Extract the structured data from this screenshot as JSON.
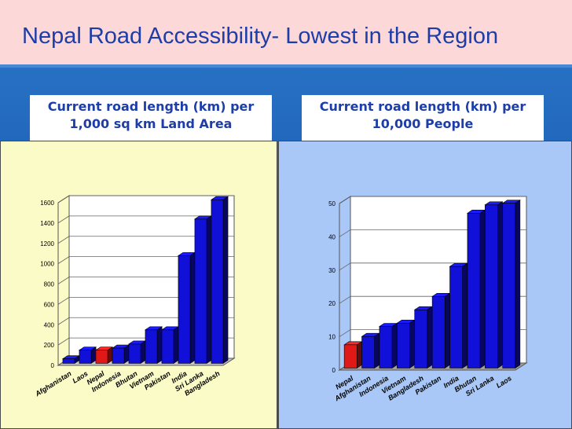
{
  "slide": {
    "title": "Nepal Road Accessibility- Lowest in the Region"
  },
  "colors": {
    "bar": "#1010d8",
    "bar_highlight": "#e01818",
    "left_panel_bg": "#fbfbc8",
    "right_panel_bg": "#a9c8f7",
    "title_color": "#1d3da8"
  },
  "chart_data": [
    {
      "type": "bar",
      "title": "Current road length (km) per 1,000 sq km Land Area",
      "title_lines": [
        "Current road length (km) per",
        "1,000 sq km Land Area"
      ],
      "categories": [
        "Afghanistan",
        "Laos",
        "Nepal",
        "Indonesia",
        "Bhutan",
        "Vietnam",
        "Pakistan",
        "India",
        "Sri Lanka",
        "Bangladesh"
      ],
      "values": [
        45,
        130,
        130,
        150,
        190,
        330,
        330,
        1060,
        1420,
        1610
      ],
      "highlight": "Nepal",
      "ylim": [
        0,
        1600
      ],
      "yticks": [
        0,
        200,
        400,
        600,
        800,
        1000,
        1200,
        1400,
        1600
      ],
      "grid": true,
      "legend": "none"
    },
    {
      "type": "bar",
      "title": "Current road length (km) per 10,000 People",
      "title_lines": [
        "Current road length (km) per",
        "10,000 People"
      ],
      "categories": [
        "Nepal",
        "Afghanistan",
        "Indonesia",
        "Vietnam",
        "Bangladesh",
        "Pakistan",
        "India",
        "Bhutan",
        "Sri Lanka",
        "Laos"
      ],
      "values": [
        7,
        9.5,
        12.5,
        13.5,
        17.5,
        21.5,
        30.5,
        46.5,
        49,
        49.5
      ],
      "highlight": "Nepal",
      "ylim": [
        0,
        50
      ],
      "yticks": [
        0,
        10,
        20,
        30,
        40,
        50
      ],
      "grid": true,
      "legend": "none"
    }
  ]
}
